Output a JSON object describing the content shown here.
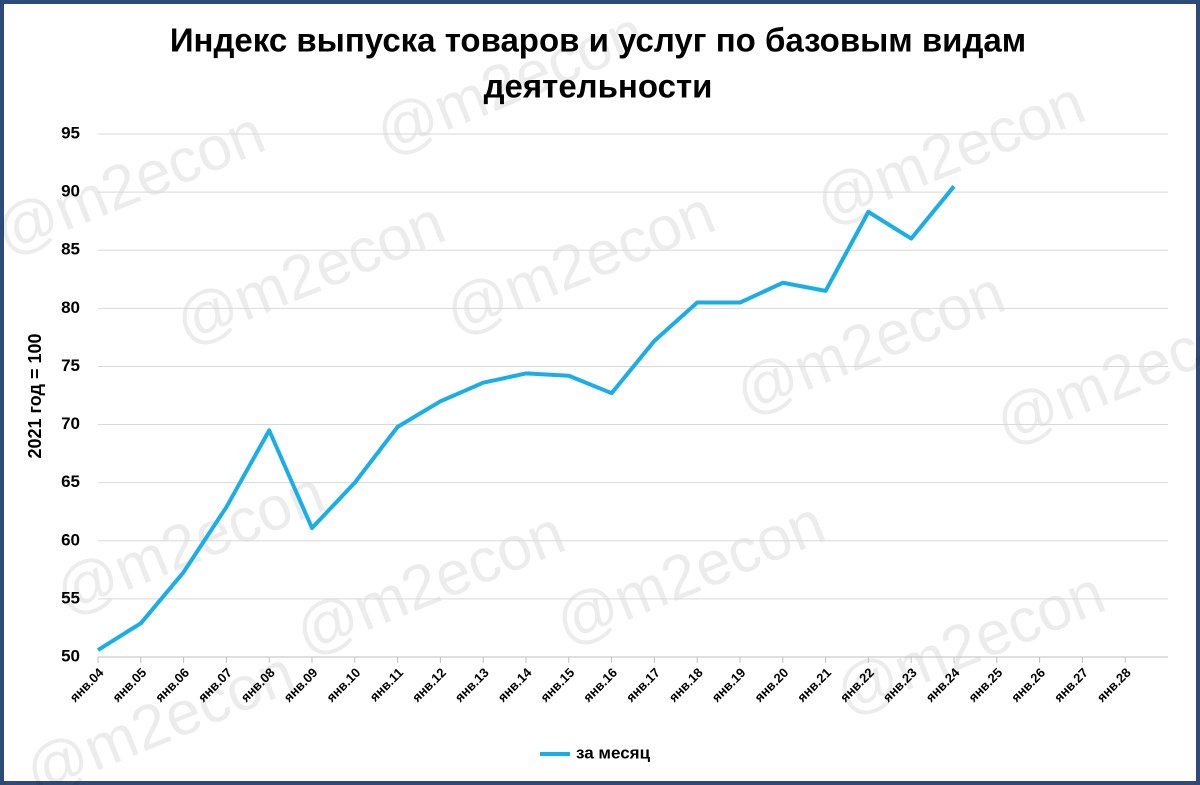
{
  "chart_data": {
    "type": "line",
    "title": "Индекс выпуска товаров и услуг по базовым видам",
    "subtitle": "деятельности",
    "y_label": "2021 год = 100",
    "watermark": "@m2econ",
    "categories": [
      "янв.04",
      "янв.05",
      "янв.06",
      "янв.07",
      "янв.08",
      "янв.09",
      "янв.10",
      "янв.11",
      "янв.12",
      "янв.13",
      "янв.14",
      "янв.15",
      "янв.16",
      "янв.17",
      "янв.18",
      "янв.19",
      "янв.20",
      "янв.21",
      "янв.22",
      "янв.23",
      "янв.24",
      "янв.25",
      "янв.26",
      "янв.27",
      "янв.28"
    ],
    "series": [
      {
        "name": "за месяц",
        "color": "#1aaee8",
        "values": [
          50.6,
          52.9,
          57.3,
          62.9,
          69.5,
          61.1,
          65.0,
          69.8,
          72.0,
          73.6,
          74.4,
          74.2,
          72.7,
          77.2,
          80.5,
          80.5,
          82.2,
          81.5,
          88.3,
          86.0,
          90.5,
          null,
          null,
          null,
          null
        ]
      }
    ],
    "ylim": [
      50,
      95
    ],
    "yticks": [
      50,
      55,
      60,
      65,
      70,
      75,
      80,
      85,
      90,
      95
    ],
    "grid": true,
    "legend": "bottom"
  }
}
